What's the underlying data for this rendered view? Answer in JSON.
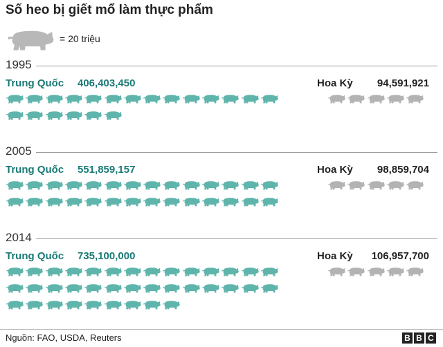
{
  "title": "Số heo bị giết mổ làm thực phẩm",
  "legend": {
    "label": "= 20 triệu",
    "icon": "pig-icon"
  },
  "colors": {
    "china": "#5fb5ac",
    "china_text": "#1a7a76",
    "usa": "#b3b3b3",
    "legend_pig": "#b8b8b8"
  },
  "chart_data": {
    "type": "pictogram",
    "unit": "= 20 triệu",
    "years": [
      {
        "year": "1995",
        "china": {
          "label": "Trung Quốc",
          "value": 406403450,
          "display": "406,403,450",
          "icons": 20
        },
        "usa": {
          "label": "Hoa Kỳ",
          "value": 94591921,
          "display": "94,591,921",
          "icons": 5
        }
      },
      {
        "year": "2005",
        "china": {
          "label": "Trung Quốc",
          "value": 551859157,
          "display": "551,859,157",
          "icons": 28
        },
        "usa": {
          "label": "Hoa Kỳ",
          "value": 98859704,
          "display": "98,859,704",
          "icons": 5
        }
      },
      {
        "year": "2014",
        "china": {
          "label": "Trung Quốc",
          "value": 735100000,
          "display": "735,100,000",
          "icons": 37
        },
        "usa": {
          "label": "Hoa Kỳ",
          "value": 106957700,
          "display": "106,957,700",
          "icons": 5
        }
      }
    ]
  },
  "footer": {
    "source": "Nguồn: FAO, USDA, Reuters",
    "logo": [
      "B",
      "B",
      "C"
    ]
  }
}
